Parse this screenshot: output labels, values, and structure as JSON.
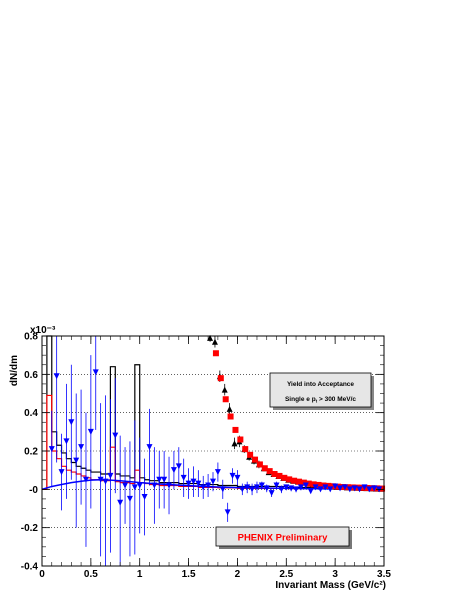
{
  "chart_data": {
    "type": "scatter",
    "title": "",
    "xlabel": "Invariant Mass (GeV/c²)",
    "ylabel": "dN/dm",
    "y_multiplier": "x10⁻³",
    "xlim": [
      0,
      3.5
    ],
    "ylim": [
      -0.4,
      0.8
    ],
    "x_ticks": [
      0,
      0.5,
      1,
      1.5,
      2,
      2.5,
      3,
      3.5
    ],
    "x_tick_labels": [
      "0",
      "0.5",
      "1",
      "1.5",
      "2",
      "2.5",
      "3",
      "3.5"
    ],
    "y_ticks": [
      -0.4,
      -0.2,
      0,
      0.2,
      0.4,
      0.6,
      0.8
    ],
    "y_tick_labels": [
      "-0.4",
      "-0.2",
      "-0",
      "0.2",
      "0.4",
      "0.6",
      "0.8"
    ],
    "grid": "horizontal dotted",
    "annotations": {
      "acceptance_line1": "Yield into Acceptance",
      "acceptance_line2_prefix": "Single e p",
      "acceptance_line2_sub": "t",
      "acceptance_line2_suffix": " > 300 MeV/c",
      "preliminary": "PHENIX Preliminary"
    },
    "series": [
      {
        "marker": "triangle-up",
        "color": "#000000",
        "x": [
          1.72,
          1.77,
          1.82,
          1.87,
          1.92,
          1.97,
          2.02,
          2.07,
          2.12,
          2.17,
          2.22,
          2.27,
          2.32,
          2.37,
          2.42,
          2.47,
          2.52,
          2.57,
          2.62,
          2.67,
          2.72,
          2.77,
          2.82,
          2.87,
          2.92,
          2.97,
          3.02,
          3.07,
          3.12,
          3.17,
          3.22,
          3.27,
          3.32,
          3.37,
          3.42,
          3.47
        ],
        "y": [
          0.79,
          0.77,
          0.59,
          0.52,
          0.42,
          0.24,
          0.25,
          0.21,
          0.17,
          0.15,
          0.13,
          0.11,
          0.09,
          0.08,
          0.07,
          0.06,
          0.05,
          0.045,
          0.04,
          0.035,
          0.03,
          0.025,
          0.022,
          0.02,
          0.018,
          0.015,
          0.013,
          0.012,
          0.01,
          0.009,
          0.008,
          0.007,
          0.006,
          0.005,
          0.004,
          0.003
        ],
        "err": [
          0.02,
          0.03,
          0.03,
          0.03,
          0.03,
          0.03,
          0.03,
          0.02,
          0.02,
          0.02,
          0.02,
          0.015,
          0.015,
          0.015,
          0.01,
          0.01,
          0.01,
          0.01,
          0.01,
          0.01,
          0.01,
          0.01,
          0.01,
          0.01,
          0.01,
          0.01,
          0.01,
          0.01,
          0.01,
          0.01,
          0.01,
          0.01,
          0.01,
          0.01,
          0.01,
          0.01
        ]
      },
      {
        "marker": "square",
        "color": "#ff0000",
        "x": [
          1.78,
          1.83,
          1.88,
          1.93,
          1.98,
          2.03,
          2.08,
          2.13,
          2.18,
          2.23,
          2.28,
          2.33,
          2.38,
          2.43,
          2.48,
          2.53,
          2.58,
          2.63,
          2.68,
          2.73,
          2.78,
          2.83,
          2.88,
          2.93,
          2.98,
          3.03,
          3.08,
          3.13,
          3.18,
          3.23,
          3.28,
          3.33,
          3.38,
          3.43,
          3.48
        ],
        "y": [
          0.71,
          0.58,
          0.47,
          0.38,
          0.31,
          0.26,
          0.21,
          0.18,
          0.155,
          0.13,
          0.11,
          0.095,
          0.08,
          0.07,
          0.06,
          0.052,
          0.045,
          0.04,
          0.035,
          0.03,
          0.026,
          0.023,
          0.02,
          0.018,
          0.016,
          0.014,
          0.012,
          0.011,
          0.01,
          0.009,
          0.008,
          0.007,
          0.006,
          0.005,
          0.004
        ]
      },
      {
        "marker": "triangle-down",
        "color": "#0000ff",
        "x": [
          0.1,
          0.15,
          0.2,
          0.25,
          0.3,
          0.35,
          0.4,
          0.45,
          0.5,
          0.55,
          0.6,
          0.65,
          0.7,
          0.75,
          0.8,
          0.85,
          0.9,
          0.95,
          1.0,
          1.05,
          1.1,
          1.15,
          1.2,
          1.25,
          1.3,
          1.35,
          1.4,
          1.45,
          1.5,
          1.55,
          1.6,
          1.65,
          1.7,
          1.75,
          1.8,
          1.85,
          1.9,
          1.95,
          2.0,
          2.05,
          2.1,
          2.15,
          2.2,
          2.25,
          2.3,
          2.35,
          2.4,
          2.45,
          2.5,
          2.55,
          2.6,
          2.65,
          2.7,
          2.75,
          2.8,
          2.85,
          2.9,
          2.95,
          3.0,
          3.05,
          3.1,
          3.15,
          3.2,
          3.25,
          3.3,
          3.35,
          3.4,
          3.45
        ],
        "y": [
          0.21,
          0.59,
          0.09,
          0.25,
          0.35,
          0.15,
          0.22,
          0.05,
          0.3,
          0.61,
          0.05,
          0.04,
          0.07,
          0.28,
          -0.07,
          0.02,
          -0.05,
          0.01,
          0.02,
          -0.04,
          0.22,
          0.02,
          0.05,
          0.05,
          0.02,
          0.1,
          0.12,
          0.06,
          0.03,
          0.04,
          0.03,
          0.01,
          0.02,
          0.04,
          0.09,
          0.0,
          -0.12,
          0.07,
          0.06,
          0.0,
          0.01,
          0.0,
          0.01,
          0.02,
          0.005,
          -0.02,
          0.02,
          0.0,
          0.01,
          0.005,
          0.0,
          0.01,
          0.02,
          -0.01,
          0.01,
          0.0,
          0.01,
          0.0,
          0.015,
          0.005,
          0.01,
          0.0,
          0.005,
          0.0,
          0.01,
          0.0,
          0.005,
          0.0
        ],
        "err": [
          0.2,
          0.45,
          0.2,
          0.3,
          0.3,
          0.35,
          0.3,
          0.35,
          0.4,
          0.3,
          0.4,
          0.45,
          0.4,
          0.3,
          0.35,
          0.2,
          0.3,
          0.35,
          0.25,
          0.2,
          0.2,
          0.2,
          0.15,
          0.15,
          0.15,
          0.1,
          0.1,
          0.1,
          0.08,
          0.08,
          0.07,
          0.06,
          0.06,
          0.05,
          0.05,
          0.05,
          0.05,
          0.04,
          0.04,
          0.03,
          0.03,
          0.03,
          0.03,
          0.02,
          0.02,
          0.02,
          0.02,
          0.02,
          0.015,
          0.015,
          0.015,
          0.015,
          0.01,
          0.01,
          0.01,
          0.01,
          0.01,
          0.01,
          0.01,
          0.01,
          0.01,
          0.01,
          0.01,
          0.01,
          0.01,
          0.01,
          0.01,
          0.01
        ]
      },
      {
        "style": "histogram",
        "color": "#000000",
        "edges": [
          0.0,
          0.05,
          0.1,
          0.15,
          0.2,
          0.25,
          0.3,
          0.35,
          0.4,
          0.45,
          0.5,
          0.55,
          0.6,
          0.65,
          0.7,
          0.75,
          0.8,
          0.85,
          0.9,
          0.95,
          1.0,
          1.05,
          1.1,
          1.2,
          1.4,
          1.6,
          1.8,
          2.0,
          2.5,
          3.0,
          3.5
        ],
        "values": [
          0.0,
          0.8,
          0.3,
          0.23,
          0.19,
          0.16,
          0.14,
          0.12,
          0.11,
          0.1,
          0.09,
          0.09,
          0.08,
          0.08,
          0.64,
          0.08,
          0.07,
          0.07,
          0.06,
          0.65,
          0.06,
          0.05,
          0.045,
          0.035,
          0.03,
          0.025,
          0.02,
          0.015,
          0.01,
          0.008
        ]
      },
      {
        "style": "histogram",
        "color": "#ff0000",
        "edges": [
          0.0,
          0.05,
          0.1,
          0.15,
          0.2,
          0.25,
          0.3,
          0.35,
          0.4,
          0.45,
          0.5,
          0.55,
          0.6,
          0.65,
          0.7,
          0.75,
          0.8,
          0.85,
          0.9,
          0.95,
          1.0,
          1.05,
          1.1,
          1.2,
          1.4,
          1.6,
          1.8,
          2.0,
          2.5,
          3.0,
          3.5
        ],
        "values": [
          0.0,
          0.49,
          0.2,
          0.16,
          0.12,
          0.1,
          0.09,
          0.08,
          0.07,
          0.06,
          0.05,
          0.05,
          0.045,
          0.045,
          0.22,
          0.04,
          0.035,
          0.035,
          0.03,
          0.1,
          0.035,
          0.03,
          0.025,
          0.02,
          0.015,
          0.01,
          0.008,
          0.005,
          0.004,
          0.002
        ]
      },
      {
        "style": "curve",
        "color": "#0000ff",
        "x": [
          0.0,
          0.1,
          0.2,
          0.3,
          0.4,
          0.5,
          0.6,
          0.7,
          0.8,
          0.9,
          1.0,
          1.2,
          1.4,
          1.6,
          1.8,
          2.0,
          2.5,
          3.0,
          3.5
        ],
        "y": [
          0.0,
          0.015,
          0.025,
          0.035,
          0.042,
          0.048,
          0.05,
          0.048,
          0.045,
          0.04,
          0.035,
          0.028,
          0.022,
          0.017,
          0.012,
          0.009,
          0.005,
          0.002,
          0.001
        ]
      }
    ]
  }
}
